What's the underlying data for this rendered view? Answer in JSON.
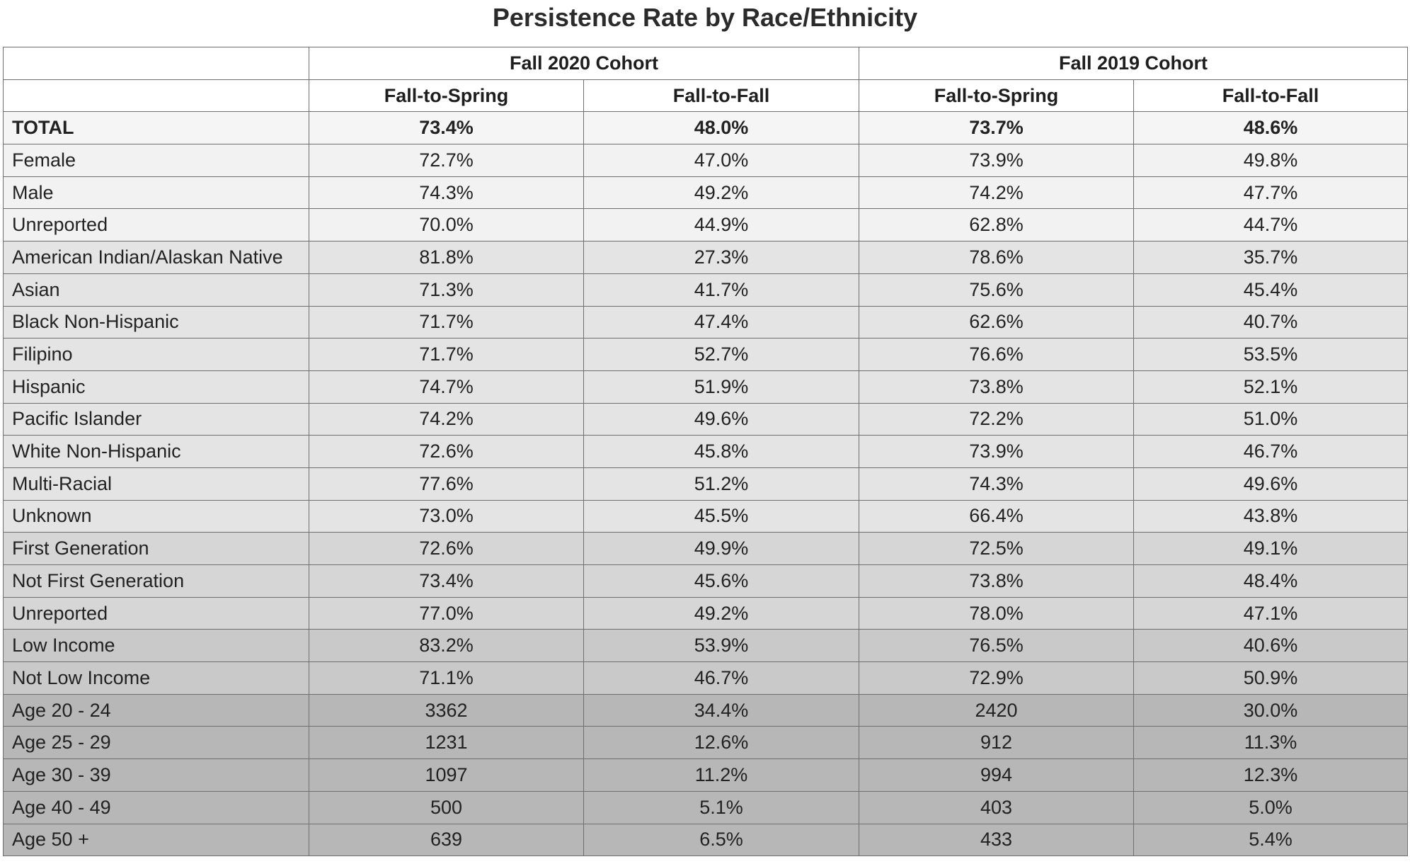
{
  "title": "Persistence Rate by Race/Ethnicity",
  "cohorts": [
    "Fall 2020 Cohort",
    "Fall 2019 Cohort"
  ],
  "subheaders": [
    "Fall-to-Spring",
    "Fall-to-Fall",
    "Fall-to-Spring",
    "Fall-to-Fall"
  ],
  "rows": [
    {
      "label": "TOTAL",
      "values": [
        "73.4%",
        "48.0%",
        "73.7%",
        "48.6%"
      ],
      "bg": "#f5f5f5",
      "bold": true
    },
    {
      "label": "Female",
      "values": [
        "72.7%",
        "47.0%",
        "73.9%",
        "49.8%"
      ],
      "bg": "#f2f2f2",
      "bold": false
    },
    {
      "label": "Male",
      "values": [
        "74.3%",
        "49.2%",
        "74.2%",
        "47.7%"
      ],
      "bg": "#f2f2f2",
      "bold": false
    },
    {
      "label": "Unreported",
      "values": [
        "70.0%",
        "44.9%",
        "62.8%",
        "44.7%"
      ],
      "bg": "#f2f2f2",
      "bold": false
    },
    {
      "label": "American Indian/Alaskan Native",
      "values": [
        "81.8%",
        "27.3%",
        "78.6%",
        "35.7%"
      ],
      "bg": "#e4e4e4",
      "bold": false
    },
    {
      "label": "Asian",
      "values": [
        "71.3%",
        "41.7%",
        "75.6%",
        "45.4%"
      ],
      "bg": "#e4e4e4",
      "bold": false
    },
    {
      "label": "Black Non-Hispanic",
      "values": [
        "71.7%",
        "47.4%",
        "62.6%",
        "40.7%"
      ],
      "bg": "#e4e4e4",
      "bold": false
    },
    {
      "label": "Filipino",
      "values": [
        "71.7%",
        "52.7%",
        "76.6%",
        "53.5%"
      ],
      "bg": "#e4e4e4",
      "bold": false
    },
    {
      "label": "Hispanic",
      "values": [
        "74.7%",
        "51.9%",
        "73.8%",
        "52.1%"
      ],
      "bg": "#e4e4e4",
      "bold": false
    },
    {
      "label": "Pacific Islander",
      "values": [
        "74.2%",
        "49.6%",
        "72.2%",
        "51.0%"
      ],
      "bg": "#e4e4e4",
      "bold": false
    },
    {
      "label": "White Non-Hispanic",
      "values": [
        "72.6%",
        "45.8%",
        "73.9%",
        "46.7%"
      ],
      "bg": "#e4e4e4",
      "bold": false
    },
    {
      "label": "Multi-Racial",
      "values": [
        "77.6%",
        "51.2%",
        "74.3%",
        "49.6%"
      ],
      "bg": "#e4e4e4",
      "bold": false
    },
    {
      "label": "Unknown",
      "values": [
        "73.0%",
        "45.5%",
        "66.4%",
        "43.8%"
      ],
      "bg": "#e4e4e4",
      "bold": false
    },
    {
      "label": "First Generation",
      "values": [
        "72.6%",
        "49.9%",
        "72.5%",
        "49.1%"
      ],
      "bg": "#d6d6d6",
      "bold": false
    },
    {
      "label": "Not First Generation",
      "values": [
        "73.4%",
        "45.6%",
        "73.8%",
        "48.4%"
      ],
      "bg": "#d6d6d6",
      "bold": false
    },
    {
      "label": "Unreported",
      "values": [
        "77.0%",
        "49.2%",
        "78.0%",
        "47.1%"
      ],
      "bg": "#d6d6d6",
      "bold": false
    },
    {
      "label": "Low Income",
      "values": [
        "83.2%",
        "53.9%",
        "76.5%",
        "40.6%"
      ],
      "bg": "#c9c9c9",
      "bold": false
    },
    {
      "label": "Not Low Income",
      "values": [
        "71.1%",
        "46.7%",
        "72.9%",
        "50.9%"
      ],
      "bg": "#c9c9c9",
      "bold": false
    },
    {
      "label": "Age 20 - 24",
      "values": [
        "3362",
        "34.4%",
        "2420",
        "30.0%"
      ],
      "bg": "#b7b7b7",
      "bold": false
    },
    {
      "label": "Age 25 - 29",
      "values": [
        "1231",
        "12.6%",
        "912",
        "11.3%"
      ],
      "bg": "#b7b7b7",
      "bold": false
    },
    {
      "label": "Age 30 - 39",
      "values": [
        "1097",
        "11.2%",
        "994",
        "12.3%"
      ],
      "bg": "#b7b7b7",
      "bold": false
    },
    {
      "label": "Age 40 - 49",
      "values": [
        "500",
        "5.1%",
        "403",
        "5.0%"
      ],
      "bg": "#b7b7b7",
      "bold": false
    },
    {
      "label": "Age 50 +",
      "values": [
        "639",
        "6.5%",
        "433",
        "5.4%"
      ],
      "bg": "#b7b7b7",
      "bold": false
    }
  ]
}
